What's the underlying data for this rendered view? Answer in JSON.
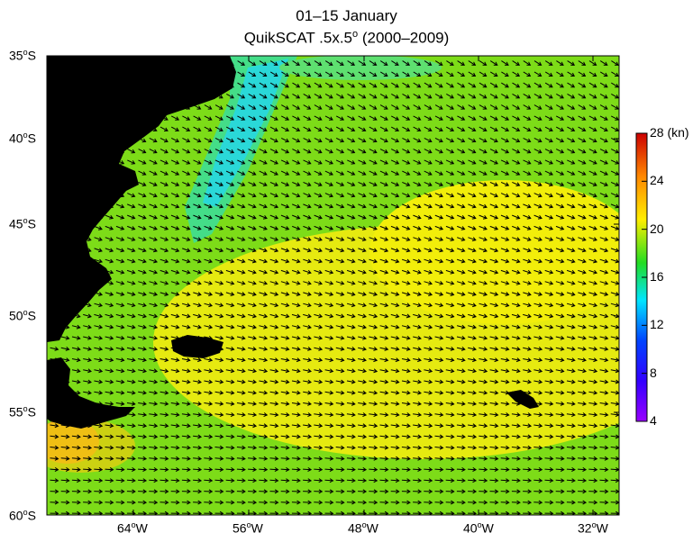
{
  "title": {
    "line1": "01–15 January",
    "line2_pre": "QuikSCAT .5x.5",
    "line2_sup": "o",
    "line2_post": " (2000–2009)"
  },
  "map": {
    "lon_range": [
      -70,
      -30
    ],
    "lat_range": [
      -60,
      -35
    ],
    "lat_ticks": [
      {
        "deg": "35",
        "sup": "o",
        "hemi": "S"
      },
      {
        "deg": "40",
        "sup": "o",
        "hemi": "S"
      },
      {
        "deg": "45",
        "sup": "o",
        "hemi": "S"
      },
      {
        "deg": "50",
        "sup": "o",
        "hemi": "S"
      },
      {
        "deg": "55",
        "sup": "o",
        "hemi": "S"
      },
      {
        "deg": "60",
        "sup": "o",
        "hemi": "S"
      }
    ],
    "lon_ticks": [
      {
        "deg": "64",
        "sup": "o",
        "hemi": "W"
      },
      {
        "deg": "56",
        "sup": "o",
        "hemi": "W"
      },
      {
        "deg": "48",
        "sup": "o",
        "hemi": "W"
      },
      {
        "deg": "40",
        "sup": "o",
        "hemi": "W"
      },
      {
        "deg": "32",
        "sup": "o",
        "hemi": "W"
      }
    ],
    "land_color": "#000000",
    "field": "wind speed (kn) with wind direction vectors",
    "prevailing_wind": "westerly"
  },
  "colorbar": {
    "unit": "(kn)",
    "min": 4,
    "max": 28,
    "tick_labels": [
      "28",
      "24",
      "20",
      "16",
      "12",
      "8",
      "4"
    ],
    "colors": [
      "#9900ff",
      "#3300ff",
      "#0044ff",
      "#00e5ff",
      "#22dd22",
      "#ffee00",
      "#ff8800",
      "#cc0000"
    ]
  }
}
